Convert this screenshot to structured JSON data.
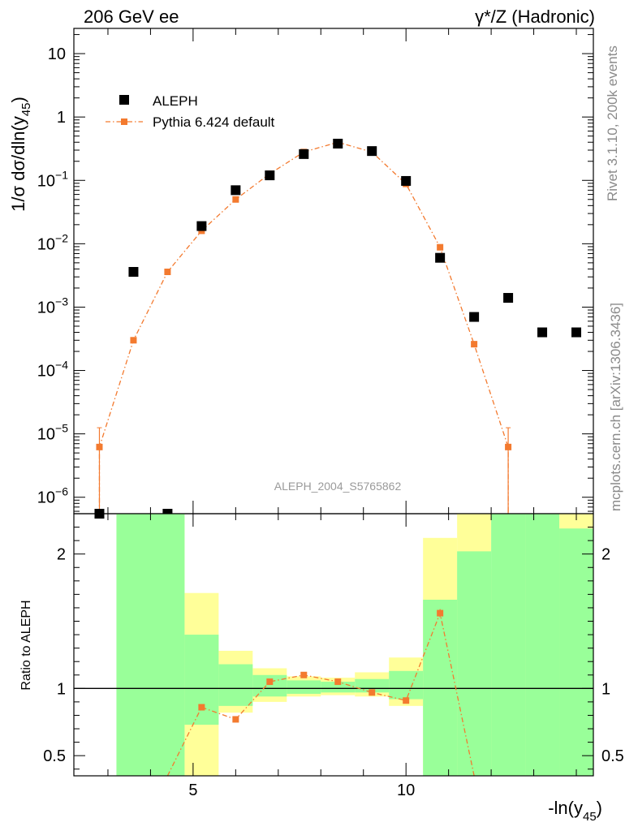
{
  "header": {
    "left": "206 GeV ee",
    "right": "γ*/Z (Hadronic)"
  },
  "side_text": {
    "top": "Rivet 3.1.10,  200k events",
    "bottom": "mcplots.cern.ch [arXiv:1306.3436]"
  },
  "chart_data": [
    {
      "type": "scatter",
      "ylabel_prefix": "1/σ  dσ/dln(y",
      "ylabel_sub": "45",
      "ylabel_suffix": ")",
      "analysis_label": "ALEPH_2004_S5765862",
      "y_log": true,
      "ylim": [
        5.5e-07,
        25
      ],
      "xlim": [
        2.2,
        14.4
      ],
      "y_ticks": [
        {
          "value": 10,
          "label": "10",
          "sup": ""
        },
        {
          "value": 1,
          "label": "1",
          "sup": ""
        },
        {
          "value": 0.1,
          "label": "10",
          "sup": "−1"
        },
        {
          "value": 0.01,
          "label": "10",
          "sup": "−2"
        },
        {
          "value": 0.001,
          "label": "10",
          "sup": "−3"
        },
        {
          "value": 0.0001,
          "label": "10",
          "sup": "−4"
        },
        {
          "value": 1e-05,
          "label": "10",
          "sup": "−5"
        },
        {
          "value": 1e-06,
          "label": "10",
          "sup": "−6"
        }
      ],
      "legend": {
        "placement": "top-left",
        "entries": [
          "ALEPH",
          "Pythia 6.424 default"
        ]
      },
      "series": [
        {
          "name": "ALEPH",
          "color": "#000000",
          "x": [
            2.8,
            3.6,
            4.4,
            5.2,
            6.0,
            6.8,
            7.6,
            8.4,
            9.2,
            10.0,
            10.8,
            11.6,
            12.4,
            13.2,
            14.0
          ],
          "y": [
            5e-07,
            0.0036,
            5e-07,
            0.019,
            0.07,
            0.12,
            0.26,
            0.38,
            0.29,
            0.098,
            0.006,
            0.0007,
            0.0014,
            0.0004,
            0.0004
          ]
        },
        {
          "name": "Pythia 6.424 default",
          "color": "#f37a2f",
          "x": [
            2.8,
            3.6,
            4.4,
            5.2,
            6.0,
            6.8,
            7.6,
            8.4,
            9.2,
            10.0,
            10.8,
            11.6,
            12.4
          ],
          "y": [
            6.2e-06,
            0.0003,
            0.0036,
            0.016,
            0.05,
            0.127,
            0.28,
            0.4,
            0.28,
            0.088,
            0.0088,
            0.00026,
            6.2e-06
          ],
          "yerr_up": [
            1.25e-05,
            0.00032,
            0.0036,
            0.016,
            0.05,
            0.127,
            0.28,
            0.4,
            0.28,
            0.088,
            0.0088,
            0.00028,
            1.25e-05
          ],
          "yerr_down": [
            5e-07,
            0.00028,
            0.0036,
            0.016,
            0.05,
            0.127,
            0.28,
            0.4,
            0.28,
            0.088,
            0.0088,
            0.00024,
            5e-07
          ]
        }
      ]
    },
    {
      "type": "line",
      "ylabel": "Ratio to ALEPH",
      "xlabel_prefix": "-ln(y",
      "xlabel_sub": "45",
      "xlabel_suffix": ")",
      "xlim": [
        2.2,
        14.4
      ],
      "ylim": [
        0.35,
        2.3
      ],
      "reference_line": 1,
      "x_ticks": [
        {
          "value": 5,
          "label": "5"
        },
        {
          "value": 10,
          "label": "10"
        }
      ],
      "y_ticks": [
        {
          "value": 2,
          "label": "2"
        },
        {
          "value": 1,
          "label": "1"
        },
        {
          "value": 0.5,
          "label": "0.5"
        }
      ],
      "bands": {
        "bins": [
          [
            3.2,
            4.8
          ],
          [
            4.8,
            5.6
          ],
          [
            5.6,
            6.4
          ],
          [
            6.4,
            7.2
          ],
          [
            7.2,
            8.0
          ],
          [
            8.0,
            8.8
          ],
          [
            8.8,
            9.6
          ],
          [
            9.6,
            10.4
          ],
          [
            10.4,
            11.2
          ],
          [
            11.2,
            12.0
          ],
          [
            12.0,
            12.8
          ],
          [
            12.8,
            13.6
          ],
          [
            13.6,
            14.4
          ]
        ],
        "yellow_low": [
          0.3,
          0.3,
          0.82,
          0.9,
          0.94,
          0.95,
          0.94,
          0.87,
          0.37,
          0.3,
          0.3,
          0.3,
          0.3
        ],
        "yellow_high": [
          2.4,
          1.71,
          1.28,
          1.15,
          1.09,
          1.08,
          1.12,
          1.23,
          2.12,
          2.4,
          1.89,
          2.4,
          2.4
        ],
        "green_low": [
          0.3,
          0.73,
          0.87,
          0.94,
          0.96,
          0.97,
          0.97,
          0.92,
          0.34,
          0.3,
          0.3,
          0.3,
          0.3
        ],
        "green_high": [
          2.36,
          1.4,
          1.18,
          1.1,
          1.06,
          1.05,
          1.07,
          1.13,
          1.66,
          2.02,
          2.4,
          2.4,
          2.19
        ]
      },
      "series": [
        {
          "name": "Pythia 6.424 default",
          "color": "#f37a2f",
          "x": [
            4.4,
            5.2,
            6.0,
            6.8,
            7.6,
            8.4,
            9.2,
            10.0,
            10.8,
            11.6
          ],
          "y": [
            0.3,
            0.86,
            0.77,
            1.05,
            1.1,
            1.05,
            0.97,
            0.91,
            1.56,
            0.3
          ]
        }
      ]
    }
  ]
}
